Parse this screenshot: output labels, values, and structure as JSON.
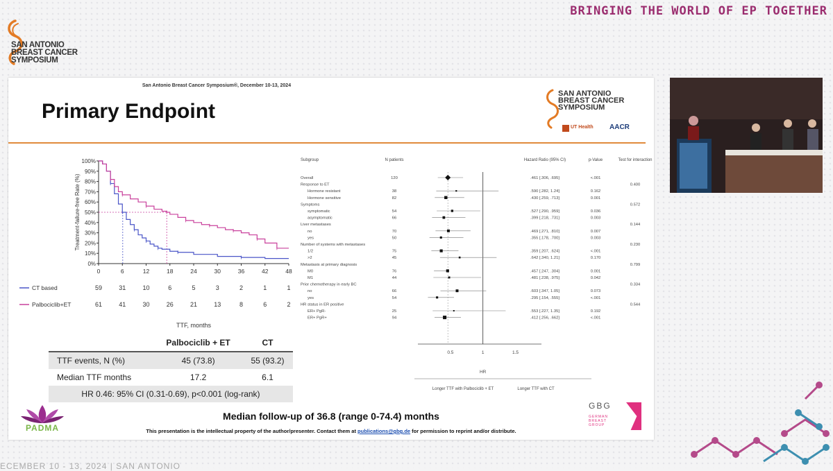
{
  "frame": {
    "banner": "BRINGING THE WORLD OF EP TOGETHER",
    "logo_lines": [
      "SAN ANTONIO",
      "BREAST CANCER",
      "SYMPOSIUM"
    ],
    "footer_partial": "ECEMBER 10 - 13, 2024 | SAN ANTONIO"
  },
  "slide": {
    "conference_line": "San Antonio Breast Cancer Symposium®, December 10-13, 2024",
    "title": "Primary Endpoint",
    "logo_lines": [
      "SAN ANTONIO",
      "BREAST CANCER",
      "SYMPOSIUM"
    ],
    "logo_ut": "UT Health",
    "logo_aacr": "AACR",
    "followup": "Median follow-up of 36.8 (range 0-74.4) months",
    "ip_text_before": "This presentation is the intellectual property of the author/presenter. Contact them at ",
    "ip_link": "publications@gbg.de",
    "ip_text_after": " for permission to reprint and/or distribute.",
    "padma": "PADMA",
    "gbg": "GBG",
    "gbg_sub": [
      "GERMAN",
      "BREAST",
      "GROUP"
    ]
  },
  "table": {
    "headers": [
      "",
      "Palbociclib + ET",
      "CT"
    ],
    "rows": [
      [
        "TTF events, N (%)",
        "45 (73.8)",
        "55 (93.2)"
      ],
      [
        "Median TTF months",
        "17.2",
        "6.1"
      ]
    ],
    "hr_row": "HR 0.46: 95% CI (0.31-0.69), p<0.001 (log-rank)"
  },
  "chart_data": [
    {
      "type": "line",
      "title": "",
      "ylabel": "Treatment-failure-free Rate (%)",
      "xlabel": "TTF, months",
      "x_ticks": [
        0,
        6,
        12,
        18,
        24,
        30,
        36,
        42,
        48
      ],
      "y_ticks": [
        "100%",
        "90%",
        "80%",
        "70%",
        "60%",
        "50%",
        "40%",
        "30%",
        "20%",
        "10%",
        "0%"
      ],
      "xlim": [
        0,
        48
      ],
      "ylim": [
        0,
        100
      ],
      "series": [
        {
          "name": "CT based",
          "color": "#4a55c8",
          "points": [
            [
              0,
              100
            ],
            [
              1,
              97
            ],
            [
              2,
              90
            ],
            [
              3,
              78
            ],
            [
              4,
              68
            ],
            [
              5,
              58
            ],
            [
              6,
              50
            ],
            [
              7,
              43
            ],
            [
              8,
              38
            ],
            [
              9,
              33
            ],
            [
              10,
              28
            ],
            [
              11,
              25
            ],
            [
              12,
              22
            ],
            [
              13,
              19
            ],
            [
              14,
              17
            ],
            [
              15,
              15
            ],
            [
              16,
              14
            ],
            [
              18,
              12
            ],
            [
              20,
              11
            ],
            [
              24,
              9
            ],
            [
              30,
              7
            ],
            [
              36,
              6
            ],
            [
              42,
              5
            ],
            [
              48,
              5
            ]
          ],
          "at_risk": [
            "59",
            "31",
            "10",
            "6",
            "5",
            "3",
            "2",
            "1",
            "1"
          ]
        },
        {
          "name": "Palbociclib+ET",
          "color": "#c9409c",
          "points": [
            [
              0,
              100
            ],
            [
              1,
              97
            ],
            [
              2,
              90
            ],
            [
              3,
              82
            ],
            [
              4,
              75
            ],
            [
              5,
              70
            ],
            [
              6,
              67
            ],
            [
              8,
              63
            ],
            [
              10,
              60
            ],
            [
              12,
              56
            ],
            [
              14,
              53
            ],
            [
              16,
              51
            ],
            [
              17.2,
              50
            ],
            [
              18,
              48
            ],
            [
              20,
              45
            ],
            [
              22,
              42
            ],
            [
              24,
              40
            ],
            [
              26,
              38
            ],
            [
              28,
              37
            ],
            [
              30,
              35
            ],
            [
              32,
              33
            ],
            [
              34,
              32
            ],
            [
              36,
              30
            ],
            [
              38,
              28
            ],
            [
              40,
              24
            ],
            [
              42,
              20
            ],
            [
              44,
              20
            ],
            [
              45,
              15
            ],
            [
              48,
              15
            ]
          ],
          "at_risk": [
            "61",
            "41",
            "30",
            "26",
            "21",
            "13",
            "8",
            "6",
            "2"
          ]
        }
      ],
      "median_markers": [
        6.1,
        17.2
      ]
    },
    {
      "type": "forest",
      "headers": [
        "Subgroup",
        "N patients",
        "Hazard Ratio (95% CI)",
        "p-Value",
        "Test for interaction"
      ],
      "xlabel": "HR",
      "x_ticks": [
        "0.5",
        "1",
        "1.5"
      ],
      "xlim": [
        0,
        1.9
      ],
      "favors_left": "Longer TTF with Palbociclib + ET",
      "favors_right": "Longer TTF with CT",
      "rows": [
        {
          "label": "Overall",
          "indent": 0,
          "n": "120",
          "hr": 0.461,
          "lo": 0.306,
          "hi": 0.695,
          "hr_text": ".461 [.306, .695]",
          "p": "<.001",
          "interaction": "",
          "size": 3
        },
        {
          "label": "Response to ET",
          "indent": 0,
          "n": "",
          "hr": null,
          "hr_text": "",
          "p": "",
          "interaction": "0.400"
        },
        {
          "label": "Hormone resistant",
          "indent": 2,
          "n": "38",
          "hr": 0.59,
          "lo": 0.282,
          "hi": 1.24,
          "hr_text": ".590 [.282, 1.24]",
          "p": "0.162",
          "interaction": "",
          "size": 1
        },
        {
          "label": "Hormone sensitive",
          "indent": 2,
          "n": "82",
          "hr": 0.43,
          "lo": 0.259,
          "hi": 0.713,
          "hr_text": ".430 [.259, .713]",
          "p": "0.001",
          "interaction": "",
          "size": 2
        },
        {
          "label": "Symptoms",
          "indent": 0,
          "n": "",
          "hr": null,
          "hr_text": "",
          "p": "",
          "interaction": "0.572"
        },
        {
          "label": "symptomatic",
          "indent": 2,
          "n": "54",
          "hr": 0.527,
          "lo": 0.29,
          "hi": 0.959,
          "hr_text": ".527 [.290, .959]",
          "p": "0.036",
          "interaction": "",
          "size": 1.5
        },
        {
          "label": "asymptomatic",
          "indent": 2,
          "n": "66",
          "hr": 0.399,
          "lo": 0.218,
          "hi": 0.731,
          "hr_text": ".399 [.218, .731]",
          "p": "0.003",
          "interaction": "",
          "size": 1.7
        },
        {
          "label": "Liver metastases",
          "indent": 0,
          "n": "",
          "hr": null,
          "hr_text": "",
          "p": "",
          "interaction": "0.144"
        },
        {
          "label": "no",
          "indent": 2,
          "n": "70",
          "hr": 0.469,
          "lo": 0.271,
          "hi": 0.81,
          "hr_text": ".469 [.271, .810]",
          "p": "0.007",
          "interaction": "",
          "size": 1.8
        },
        {
          "label": "yes",
          "indent": 2,
          "n": "50",
          "hr": 0.355,
          "lo": 0.178,
          "hi": 0.7,
          "hr_text": ".355 [.178, .700]",
          "p": "0.003",
          "interaction": "",
          "size": 1.4
        },
        {
          "label": "Number of systems with metastases",
          "indent": 0,
          "n": "",
          "hr": null,
          "hr_text": "",
          "p": "",
          "interaction": "0.230"
        },
        {
          "label": "1/2",
          "indent": 2,
          "n": "75",
          "hr": 0.359,
          "lo": 0.207,
          "hi": 0.624,
          "hr_text": ".359 [.207, .624]",
          "p": "<.001",
          "interaction": "",
          "size": 1.9
        },
        {
          "label": ">2",
          "indent": 2,
          "n": "45",
          "hr": 0.642,
          "lo": 0.34,
          "hi": 1.21,
          "hr_text": ".642 [.340, 1.21]",
          "p": "0.170",
          "interaction": "",
          "size": 1.2
        },
        {
          "label": "Metastasis at primary diagnosis",
          "indent": 0,
          "n": "",
          "hr": null,
          "hr_text": "",
          "p": "",
          "interaction": "0.799"
        },
        {
          "label": "M0",
          "indent": 2,
          "n": "76",
          "hr": 0.457,
          "lo": 0.247,
          "hi": 0.304,
          "hr_text": ".457 [.247, .304]",
          "p": "0.001",
          "interaction": "",
          "size": 1.9
        },
        {
          "label": "M1",
          "indent": 2,
          "n": "44",
          "hr": 0.481,
          "lo": 0.238,
          "hi": 0.975,
          "hr_text": ".481 [.238, .975]",
          "p": "0.042",
          "interaction": "",
          "size": 1.3
        },
        {
          "label": "Prior chemotherapy in early BC",
          "indent": 0,
          "n": "",
          "hr": null,
          "hr_text": "",
          "p": "",
          "interaction": "0.334"
        },
        {
          "label": "no",
          "indent": 2,
          "n": "66",
          "hr": 0.603,
          "lo": 0.347,
          "hi": 1.05,
          "hr_text": ".603 [.347, 1.05]",
          "p": "0.073",
          "interaction": "",
          "size": 1.8
        },
        {
          "label": "yes",
          "indent": 2,
          "n": "54",
          "hr": 0.295,
          "lo": 0.154,
          "hi": 0.555,
          "hr_text": ".295 [.154, .555]",
          "p": "<.001",
          "interaction": "",
          "size": 1.4
        },
        {
          "label": "HR status in ER positive",
          "indent": 0,
          "n": "",
          "hr": null,
          "hr_text": "",
          "p": "",
          "interaction": "0.544"
        },
        {
          "label": "ER+ PgR-",
          "indent": 2,
          "n": "25",
          "hr": 0.553,
          "lo": 0.227,
          "hi": 1.35,
          "hr_text": ".553 [.227, 1.35]",
          "p": "0.192",
          "interaction": "",
          "size": 0.9
        },
        {
          "label": "ER+ PgR+",
          "indent": 2,
          "n": "94",
          "hr": 0.412,
          "lo": 0.256,
          "hi": 0.662,
          "hr_text": ".412 [.256, .662]",
          "p": "<.001",
          "interaction": "",
          "size": 2.3
        }
      ]
    }
  ]
}
